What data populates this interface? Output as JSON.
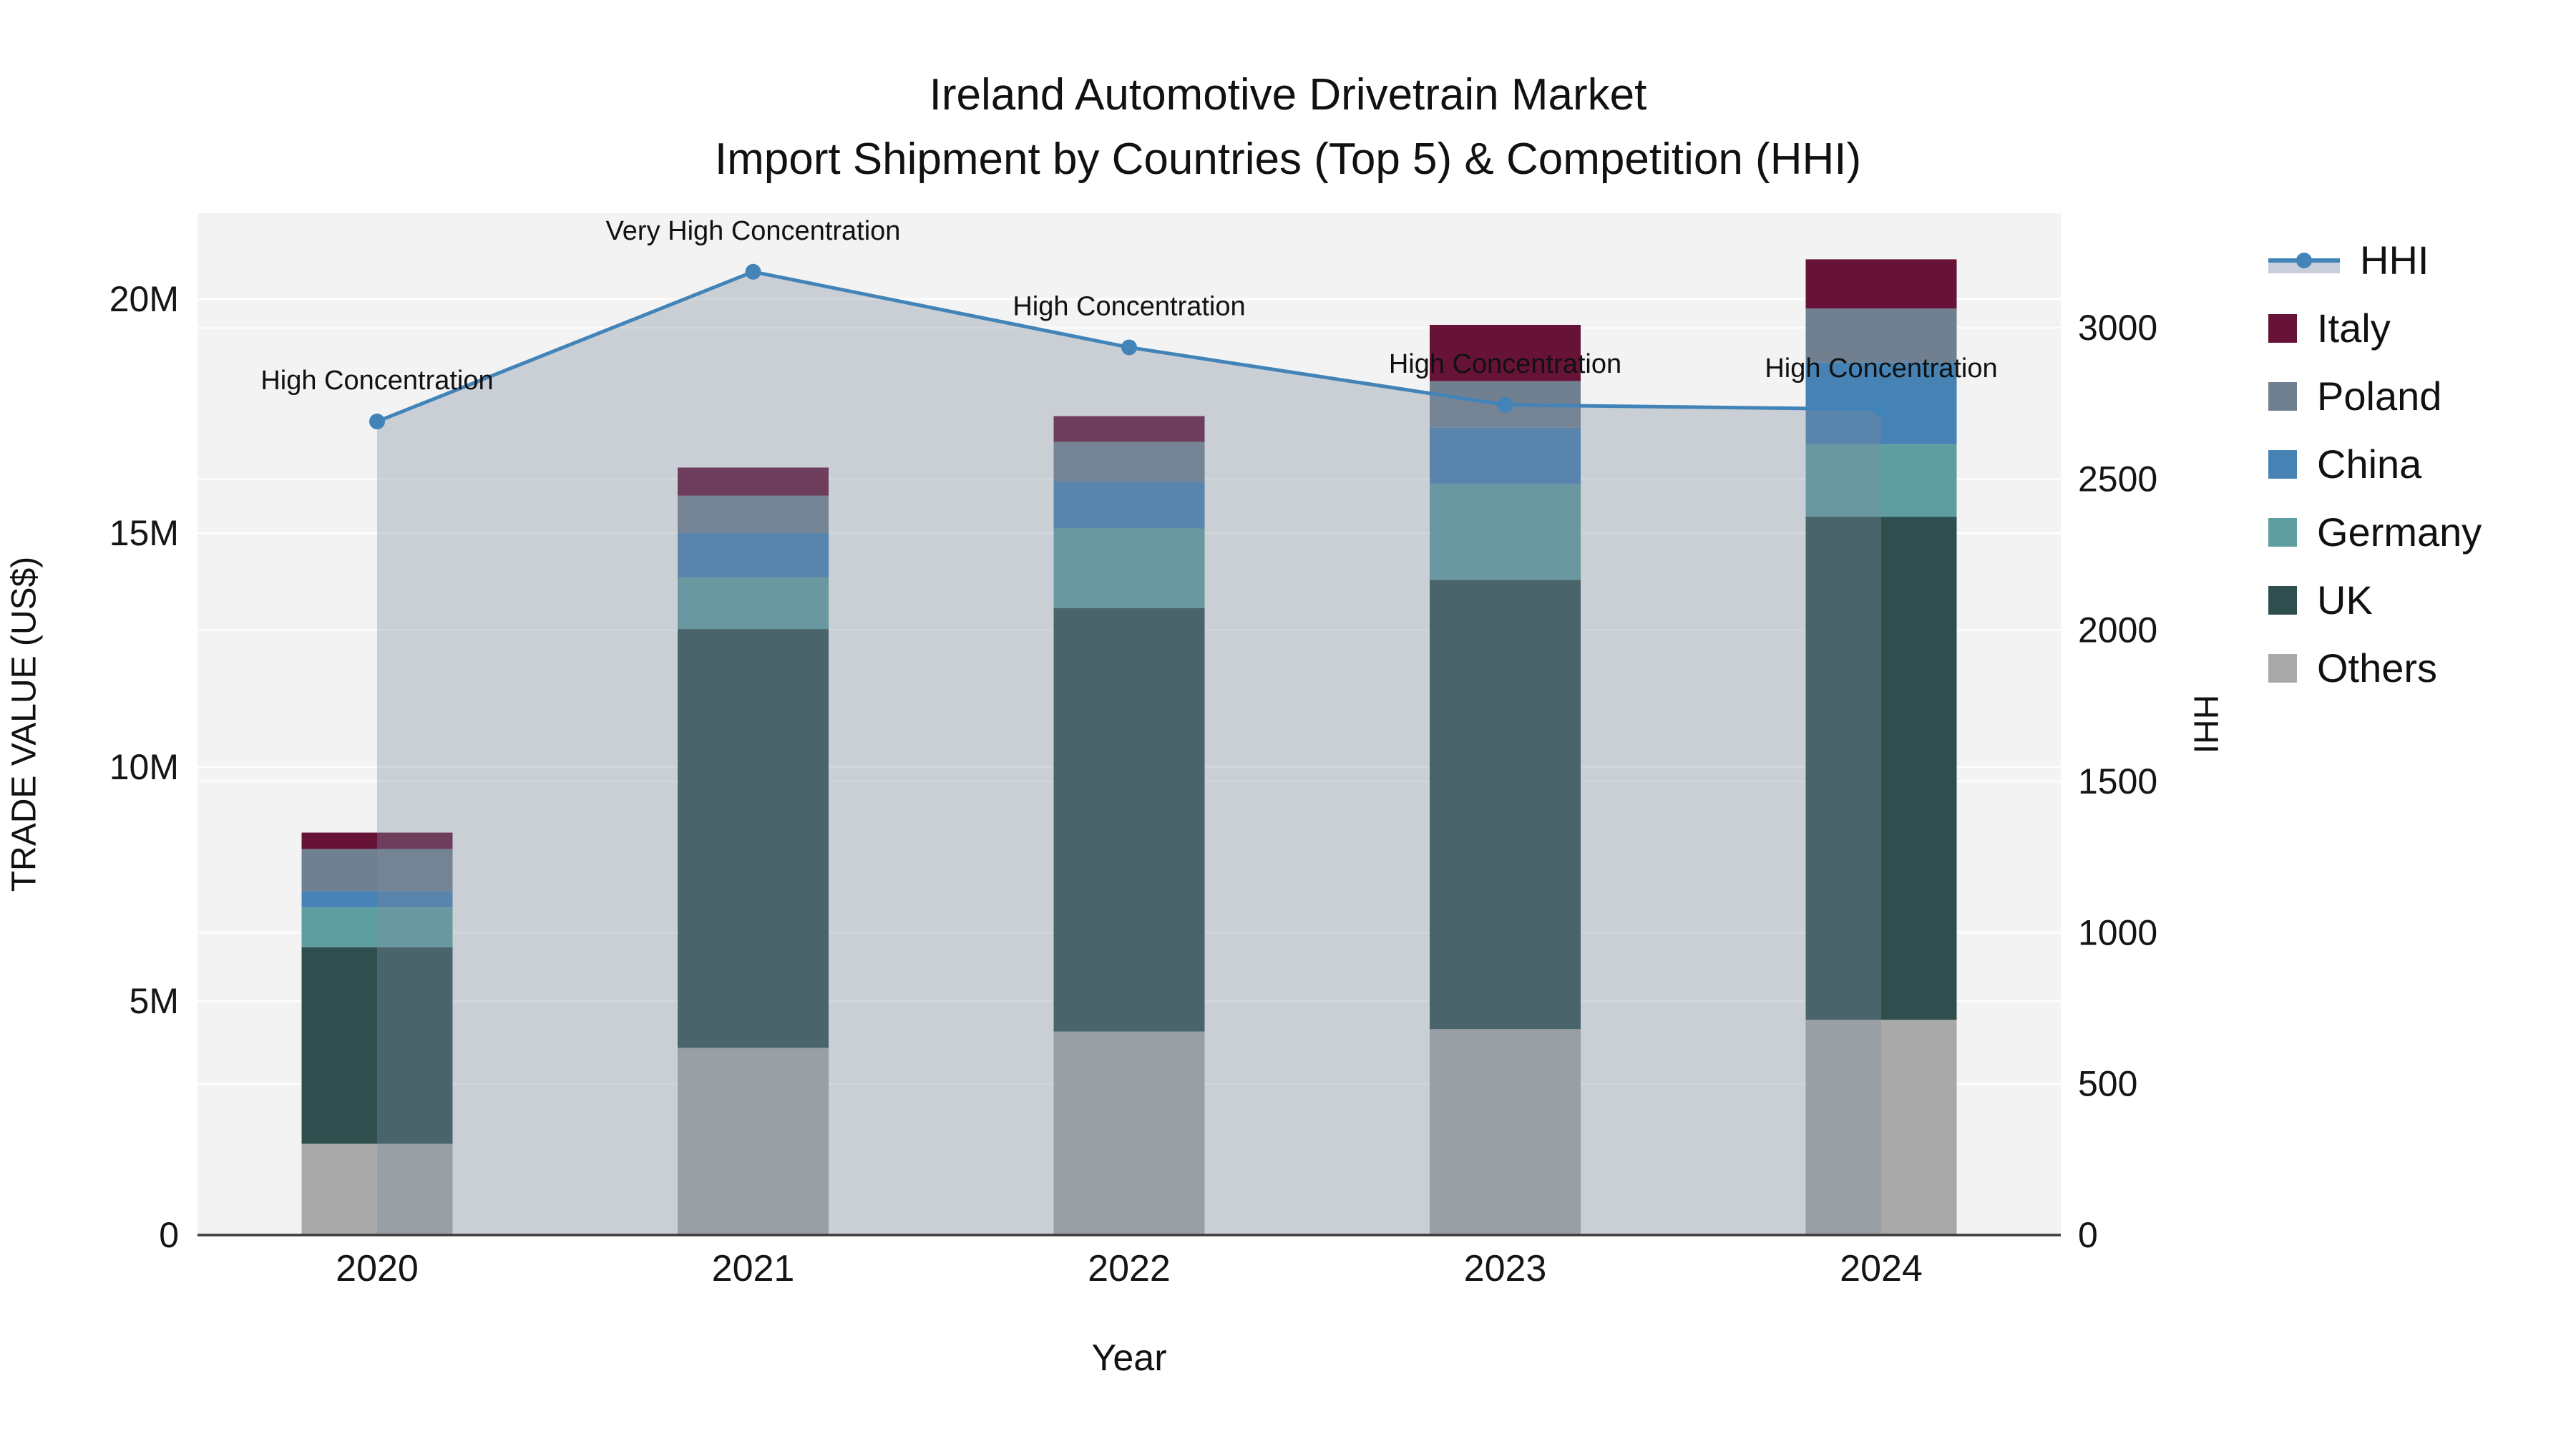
{
  "title": {
    "line1": "Ireland Automotive Drivetrain Market",
    "line2": "Import Shipment by Countries (Top 5) & Competition (HHI)"
  },
  "axes": {
    "x_title": "Year",
    "y_left_title": "TRADE VALUE (US$)",
    "y_right_title": "HHI",
    "y_left_ticks": [
      "0",
      "5M",
      "10M",
      "15M",
      "20M"
    ],
    "y_left_tick_values_musd": [
      0,
      5,
      10,
      15,
      20
    ],
    "y_right_ticks": [
      "0",
      "500",
      "1000",
      "1500",
      "2000",
      "2500",
      "3000"
    ],
    "y_right_tick_values": [
      0,
      500,
      1000,
      1500,
      2000,
      2500,
      3000
    ]
  },
  "legend": {
    "items": [
      {
        "label": "HHI",
        "type": "line",
        "color": "#4384B8"
      },
      {
        "label": "Italy",
        "type": "square",
        "color": "#671338"
      },
      {
        "label": "Poland",
        "type": "square",
        "color": "#708090"
      },
      {
        "label": "China",
        "type": "square",
        "color": "#4682B4"
      },
      {
        "label": "Germany",
        "type": "square",
        "color": "#5F9EA0"
      },
      {
        "label": "UK",
        "type": "square",
        "color": "#2F4F4F"
      },
      {
        "label": "Others",
        "type": "square",
        "color": "#A9A9A9"
      }
    ]
  },
  "chart_data": {
    "type": "stacked-bar+line",
    "title": "Ireland Automotive Drivetrain Market — Import Shipment by Countries (Top 5) & Competition (HHI)",
    "categories": [
      "2020",
      "2021",
      "2022",
      "2023",
      "2024"
    ],
    "xlabel": "Year",
    "ylabel_left": "TRADE VALUE (US$)",
    "ylabel_right": "HHI",
    "bar_value_unit": "USD millions",
    "stack_order_bottom_to_top": [
      "Others",
      "UK",
      "Germany",
      "China",
      "Poland",
      "Italy"
    ],
    "series": [
      {
        "name": "Others",
        "color": "#A9A9A9",
        "values_musd": [
          1.95,
          4.0,
          4.35,
          4.4,
          4.6
        ]
      },
      {
        "name": "UK",
        "color": "#2F4F4F",
        "values_musd": [
          4.2,
          8.95,
          9.05,
          9.6,
          10.75
        ]
      },
      {
        "name": "Germany",
        "color": "#5F9EA0",
        "values_musd": [
          0.85,
          1.1,
          1.7,
          2.05,
          1.55
        ]
      },
      {
        "name": "China",
        "color": "#4682B4",
        "values_musd": [
          0.35,
          0.95,
          1.0,
          1.2,
          1.75
        ]
      },
      {
        "name": "Poland",
        "color": "#708090",
        "values_musd": [
          0.9,
          0.8,
          0.85,
          1.0,
          1.15
        ]
      },
      {
        "name": "Italy",
        "color": "#671338",
        "values_musd": [
          0.35,
          0.6,
          0.55,
          1.2,
          1.05
        ]
      }
    ],
    "bar_totals_musd": [
      8.6,
      16.4,
      17.5,
      19.45,
      20.85
    ],
    "line_series": {
      "name": "HHI",
      "axis": "right",
      "values": [
        2690,
        3185,
        2935,
        2745,
        2730
      ]
    },
    "annotations": [
      {
        "category": "2020",
        "text": "High Concentration"
      },
      {
        "category": "2021",
        "text": "Very High Concentration"
      },
      {
        "category": "2022",
        "text": "High Concentration"
      },
      {
        "category": "2023",
        "text": "High Concentration"
      },
      {
        "category": "2024",
        "text": "High Concentration"
      }
    ],
    "ylim_left_musd": [
      0,
      21.8
    ],
    "ylim_right": [
      0,
      3380
    ],
    "grid": true,
    "legend_position": "right"
  },
  "colors": {
    "plot_bg": "#F3F3F3",
    "grid": "#FFFFFF",
    "axis_line": "#3B3B3B",
    "hhi_line": "#4384B8",
    "area_fill": "rgba(125,140,160,0.35)",
    "text": "#111111",
    "tick_text": "#151515"
  }
}
